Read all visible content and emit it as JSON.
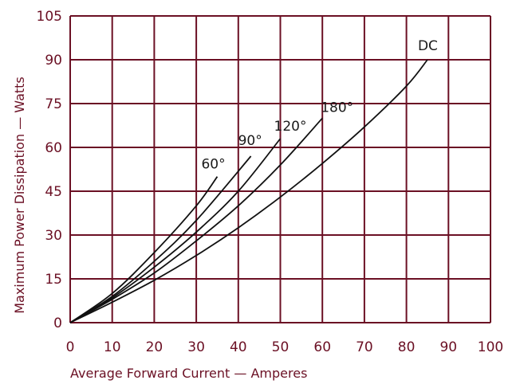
{
  "chart_data": {
    "type": "line",
    "xlabel": "Average Forward Current — Amperes",
    "ylabel": "Maximum Power Dissipation — Watts",
    "xlim": [
      0,
      100
    ],
    "ylim": [
      0,
      105
    ],
    "x_ticks": [
      "0",
      "10",
      "20",
      "30",
      "40",
      "50",
      "60",
      "70",
      "80",
      "90",
      "100"
    ],
    "y_ticks": [
      "0",
      "15",
      "30",
      "45",
      "60",
      "75",
      "90",
      "105"
    ],
    "grid": true,
    "series": [
      {
        "name": "60°",
        "x": [
          0,
          10,
          20,
          30,
          35
        ],
        "y": [
          0,
          10,
          24,
          40,
          50
        ]
      },
      {
        "name": "90°",
        "x": [
          0,
          10,
          20,
          30,
          43
        ],
        "y": [
          0,
          9,
          21,
          35,
          57
        ]
      },
      {
        "name": "120°",
        "x": [
          0,
          10,
          20,
          30,
          40,
          50
        ],
        "y": [
          0,
          8.5,
          19,
          31,
          45,
          63
        ]
      },
      {
        "name": "180°",
        "x": [
          0,
          10,
          20,
          30,
          40,
          50,
          60
        ],
        "y": [
          0,
          8,
          17,
          28,
          40,
          54,
          70
        ]
      },
      {
        "name": "DC",
        "x": [
          0,
          10,
          20,
          30,
          40,
          50,
          60,
          70,
          80,
          85
        ],
        "y": [
          0,
          7,
          14.5,
          23,
          32.5,
          43,
          54.5,
          67,
          81,
          90
        ]
      }
    ]
  },
  "colors": {
    "axis": "#6b1024",
    "grid": "#6b1024",
    "curve": "#111111"
  }
}
